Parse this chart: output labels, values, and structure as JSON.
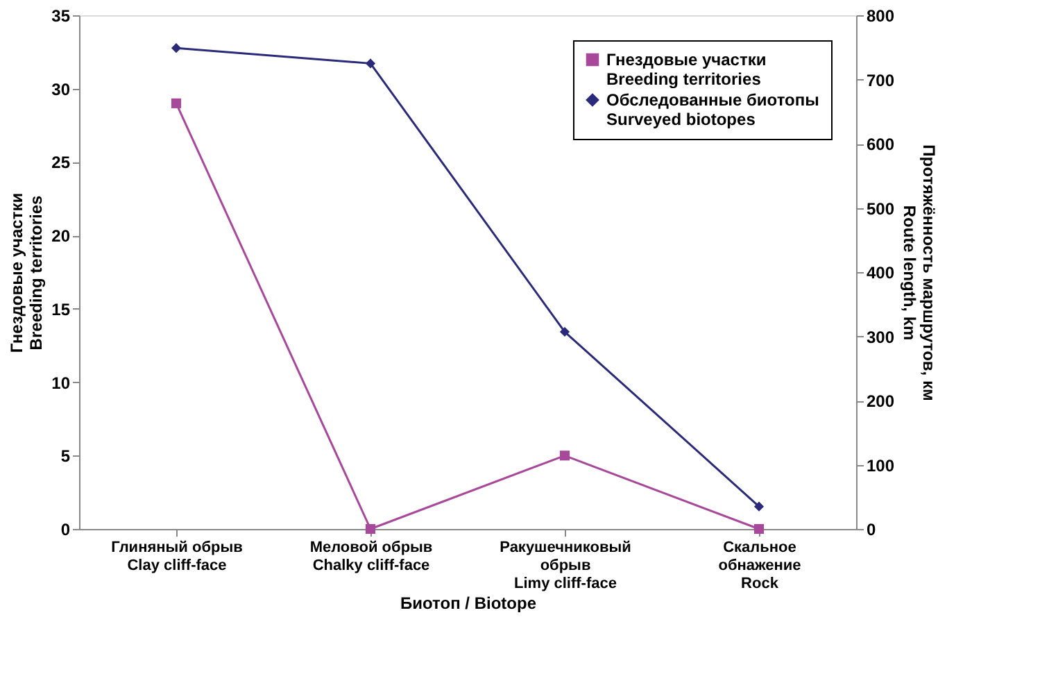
{
  "chart_data": {
    "type": "line",
    "categories": [
      "Глиняный обрыв\nClay cliff-face",
      "Меловой обрыв\nChalky cliff-face",
      "Ракушечниковый\nобрыв\nLimy cliff-face",
      "Скальное\nобнажение\nRock"
    ],
    "series": [
      {
        "name": "Гнездовые участки\nBreeding territories",
        "color": "#a8489a",
        "marker": "square",
        "values": [
          29,
          0,
          5,
          0
        ]
      },
      {
        "name": "Обследованные биотопы\nSurveyed biotopes",
        "color": "#2b2a7a",
        "marker": "diamond",
        "axis": "y2",
        "values": [
          749,
          725,
          307,
          35
        ]
      }
    ],
    "xlabel": "Биотоп / Biotope",
    "ylabel": "Гнездовые участки\nBreeding territories",
    "y2label": "Протяжённость маршрутов, км\nRoute length, km",
    "ylim": [
      0,
      35
    ],
    "yticks": [
      0,
      5,
      10,
      15,
      20,
      25,
      30,
      35
    ],
    "y2lim": [
      0,
      800
    ],
    "y2ticks": [
      0,
      100,
      200,
      300,
      400,
      500,
      600,
      700,
      800
    ],
    "legend": "top right",
    "grid": false,
    "line_style": "solid"
  }
}
